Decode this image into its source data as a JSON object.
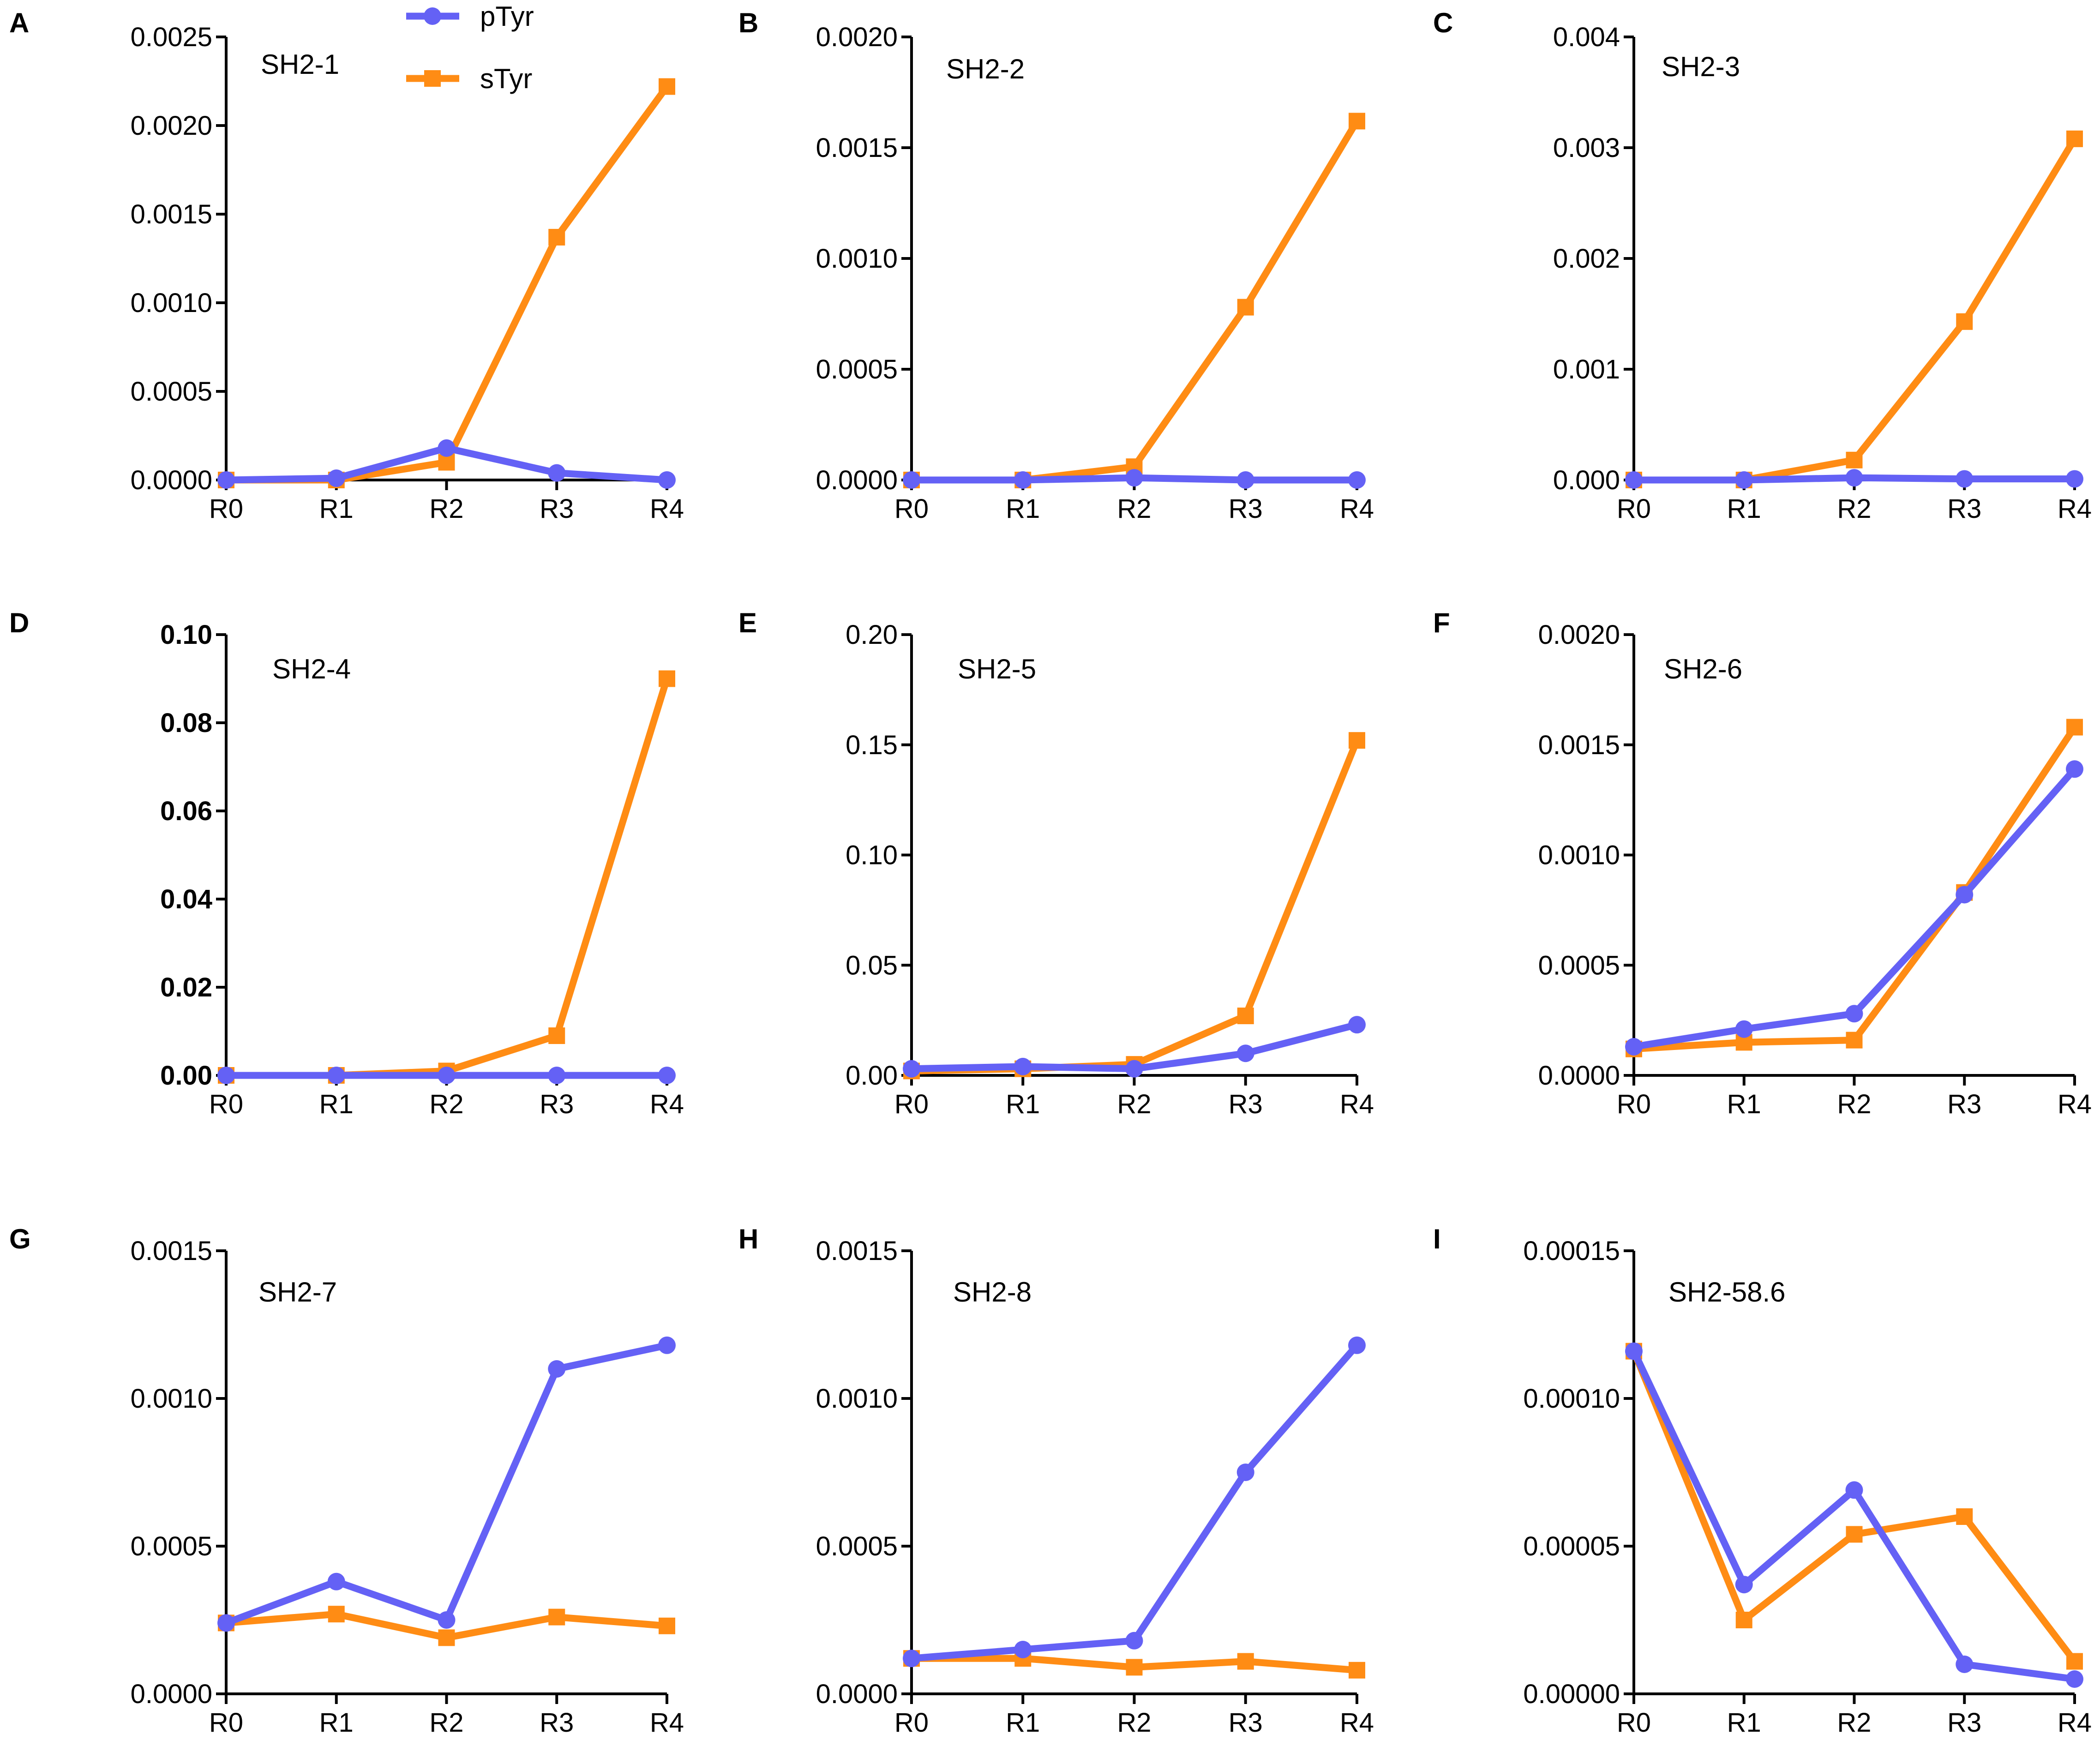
{
  "legend": {
    "entries": [
      {
        "name": "pTyr",
        "color": "#6461F5",
        "marker": "circle"
      },
      {
        "name": "sTyr",
        "color": "#FF8C14",
        "marker": "square"
      }
    ]
  },
  "chart_data": [
    {
      "panel": "A",
      "type": "line",
      "title": "SH2-1",
      "categories": [
        "R0",
        "R1",
        "R2",
        "R3",
        "R4"
      ],
      "ylim": [
        0,
        0.0025
      ],
      "yticks": [
        0.0,
        0.0005,
        0.001,
        0.0015,
        0.002,
        0.0025
      ],
      "ytick_labels": [
        "0.0000",
        "0.0005",
        "0.0010",
        "0.0015",
        "0.0020",
        "0.0025"
      ],
      "bold_ticks": false,
      "series": [
        {
          "name": "pTyr",
          "values": [
            0.0,
            1e-05,
            0.00018,
            4e-05,
            0.0
          ]
        },
        {
          "name": "sTyr",
          "values": [
            0.0,
            0.0,
            0.0001,
            0.00137,
            0.00222
          ]
        }
      ]
    },
    {
      "panel": "B",
      "type": "line",
      "title": "SH2-2",
      "categories": [
        "R0",
        "R1",
        "R2",
        "R3",
        "R4"
      ],
      "ylim": [
        0,
        0.002
      ],
      "yticks": [
        0.0,
        0.0005,
        0.001,
        0.0015,
        0.002
      ],
      "ytick_labels": [
        "0.0000",
        "0.0005",
        "0.0010",
        "0.0015",
        "0.0020"
      ],
      "bold_ticks": false,
      "series": [
        {
          "name": "pTyr",
          "values": [
            0.0,
            0.0,
            1e-05,
            0.0,
            0.0
          ]
        },
        {
          "name": "sTyr",
          "values": [
            0.0,
            0.0,
            6e-05,
            0.00078,
            0.00162
          ]
        }
      ]
    },
    {
      "panel": "C",
      "type": "line",
      "title": "SH2-3",
      "categories": [
        "R0",
        "R1",
        "R2",
        "R3",
        "R4"
      ],
      "ylim": [
        0,
        0.004
      ],
      "yticks": [
        0.0,
        0.001,
        0.002,
        0.003,
        0.004
      ],
      "ytick_labels": [
        "0.000",
        "0.001",
        "0.002",
        "0.003",
        "0.004"
      ],
      "bold_ticks": false,
      "series": [
        {
          "name": "pTyr",
          "values": [
            0.0,
            0.0,
            2e-05,
            1e-05,
            1e-05
          ]
        },
        {
          "name": "sTyr",
          "values": [
            0.0,
            0.0,
            0.00018,
            0.00143,
            0.00308
          ]
        }
      ]
    },
    {
      "panel": "D",
      "type": "line",
      "title": "SH2-4",
      "categories": [
        "R0",
        "R1",
        "R2",
        "R3",
        "R4"
      ],
      "ylim": [
        0,
        0.1
      ],
      "yticks": [
        0.0,
        0.02,
        0.04,
        0.06,
        0.08,
        0.1
      ],
      "ytick_labels": [
        "0.00",
        "0.02",
        "0.04",
        "0.06",
        "0.08",
        "0.10"
      ],
      "bold_ticks": true,
      "series": [
        {
          "name": "pTyr",
          "values": [
            0.0,
            0.0,
            0.0,
            0.0,
            0.0
          ]
        },
        {
          "name": "sTyr",
          "values": [
            0.0,
            0.0,
            0.001,
            0.009,
            0.09
          ]
        }
      ]
    },
    {
      "panel": "E",
      "type": "line",
      "title": "SH2-5",
      "categories": [
        "R0",
        "R1",
        "R2",
        "R3",
        "R4"
      ],
      "ylim": [
        0,
        0.2
      ],
      "yticks": [
        0.0,
        0.05,
        0.1,
        0.15,
        0.2
      ],
      "ytick_labels": [
        "0.00",
        "0.05",
        "0.10",
        "0.15",
        "0.20"
      ],
      "bold_ticks": false,
      "series": [
        {
          "name": "pTyr",
          "values": [
            0.003,
            0.004,
            0.003,
            0.01,
            0.023
          ]
        },
        {
          "name": "sTyr",
          "values": [
            0.002,
            0.003,
            0.005,
            0.027,
            0.152
          ]
        }
      ]
    },
    {
      "panel": "F",
      "type": "line",
      "title": "SH2-6",
      "categories": [
        "R0",
        "R1",
        "R2",
        "R3",
        "R4"
      ],
      "ylim": [
        0,
        0.002
      ],
      "yticks": [
        0.0,
        0.0005,
        0.001,
        0.0015,
        0.002
      ],
      "ytick_labels": [
        "0.0000",
        "0.0005",
        "0.0010",
        "0.0015",
        "0.0020"
      ],
      "bold_ticks": false,
      "series": [
        {
          "name": "pTyr",
          "values": [
            0.00013,
            0.00021,
            0.00028,
            0.00082,
            0.00139
          ]
        },
        {
          "name": "sTyr",
          "values": [
            0.00012,
            0.00015,
            0.00016,
            0.00083,
            0.00158
          ]
        }
      ]
    },
    {
      "panel": "G",
      "type": "line",
      "title": "SH2-7",
      "categories": [
        "R0",
        "R1",
        "R2",
        "R3",
        "R4"
      ],
      "ylim": [
        0,
        0.0015
      ],
      "yticks": [
        0.0,
        0.0005,
        0.001,
        0.0015
      ],
      "ytick_labels": [
        "0.0000",
        "0.0005",
        "0.0010",
        "0.0015"
      ],
      "bold_ticks": false,
      "series": [
        {
          "name": "pTyr",
          "values": [
            0.00024,
            0.00038,
            0.00025,
            0.0011,
            0.00118
          ]
        },
        {
          "name": "sTyr",
          "values": [
            0.00024,
            0.00027,
            0.00019,
            0.00026,
            0.00023
          ]
        }
      ]
    },
    {
      "panel": "H",
      "type": "line",
      "title": "SH2-8",
      "categories": [
        "R0",
        "R1",
        "R2",
        "R3",
        "R4"
      ],
      "ylim": [
        0,
        0.0015
      ],
      "yticks": [
        0.0,
        0.0005,
        0.001,
        0.0015
      ],
      "ytick_labels": [
        "0.0000",
        "0.0005",
        "0.0010",
        "0.0015"
      ],
      "bold_ticks": false,
      "series": [
        {
          "name": "pTyr",
          "values": [
            0.00012,
            0.00015,
            0.00018,
            0.00075,
            0.00118
          ]
        },
        {
          "name": "sTyr",
          "values": [
            0.00012,
            0.00012,
            9e-05,
            0.00011,
            8e-05
          ]
        }
      ]
    },
    {
      "panel": "I",
      "type": "line",
      "title": "SH2-58.6",
      "categories": [
        "R0",
        "R1",
        "R2",
        "R3",
        "R4"
      ],
      "ylim": [
        0,
        0.00015
      ],
      "yticks": [
        0.0,
        5e-05,
        0.0001,
        0.00015
      ],
      "ytick_labels": [
        "0.00000",
        "0.00005",
        "0.00010",
        "0.00015"
      ],
      "bold_ticks": false,
      "series": [
        {
          "name": "pTyr",
          "values": [
            0.000116,
            3.7e-05,
            6.9e-05,
            1e-05,
            5e-06
          ]
        },
        {
          "name": "sTyr",
          "values": [
            0.000116,
            2.5e-05,
            5.4e-05,
            6e-05,
            1.1e-05
          ]
        }
      ]
    }
  ]
}
